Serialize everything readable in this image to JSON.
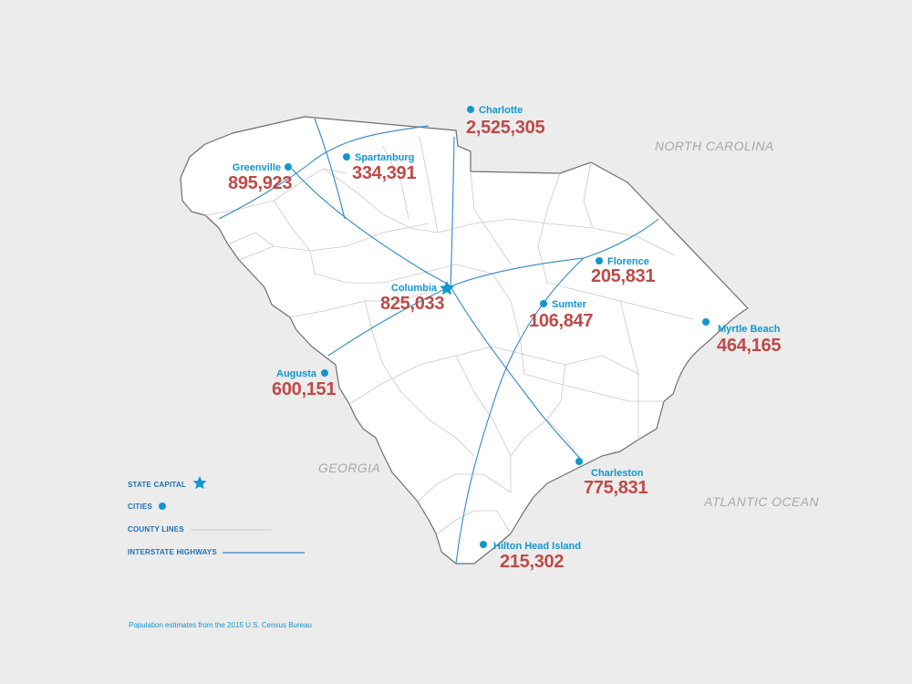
{
  "regions": {
    "north_carolina": "NORTH CAROLINA",
    "georgia": "GEORGIA",
    "atlantic_ocean": "ATLANTIC OCEAN"
  },
  "cities": [
    {
      "key": "charlotte",
      "name": "Charlotte",
      "population": "2,525,305"
    },
    {
      "key": "greenville",
      "name": "Greenville",
      "population": "895,923"
    },
    {
      "key": "spartanburg",
      "name": "Spartanburg",
      "population": "334,391"
    },
    {
      "key": "columbia",
      "name": "Columbia",
      "population": "825,033"
    },
    {
      "key": "florence",
      "name": "Florence",
      "population": "205,831"
    },
    {
      "key": "sumter",
      "name": "Sumter",
      "population": "106,847"
    },
    {
      "key": "myrtle",
      "name": "Myrtle Beach",
      "population": "464,165"
    },
    {
      "key": "augusta",
      "name": "Augusta",
      "population": "600,151"
    },
    {
      "key": "charleston",
      "name": "Charleston",
      "population": "775,831"
    },
    {
      "key": "hilton",
      "name": "Hilton Head Island",
      "population": "215,302"
    }
  ],
  "legend": {
    "state_capital": "STATE CAPITAL",
    "cities": "CITIES",
    "county_lines": "COUNTY LINES",
    "interstate_highways": "INTERSTATE HIGHWAYS"
  },
  "footnote": "Population estimates from the 2015 U.S. Census Bureau",
  "colors": {
    "city_blue": "#1296cf",
    "population_red": "#bf4a47",
    "highway_blue": "#2f86c8",
    "county_gray": "#c9c9c9",
    "background": "#ececec"
  },
  "icons": {
    "capital": "star-icon",
    "city": "dot-icon"
  }
}
